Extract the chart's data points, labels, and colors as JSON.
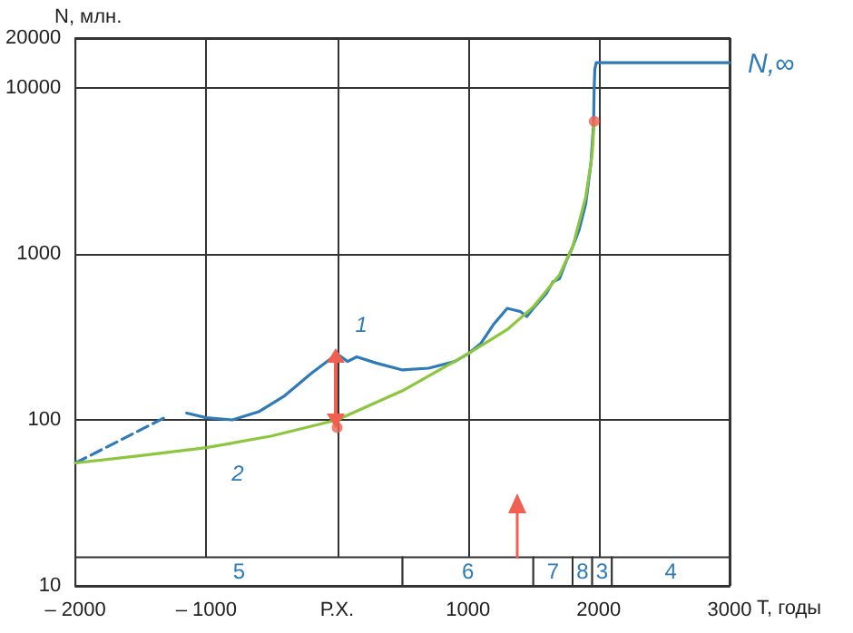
{
  "chart_data": {
    "type": "line",
    "xlabel": "T, годы",
    "ylabel": "N, млн.",
    "log": "y",
    "grid": true,
    "line_style": "solid",
    "marker": "none",
    "xlim": [
      -2000,
      3000
    ],
    "xticks": [
      {
        "value": -2000,
        "label": "– 2000"
      },
      {
        "value": -1000,
        "label": "– 1000"
      },
      {
        "value": 0,
        "label": "Р.Х."
      },
      1000,
      2000,
      3000
    ],
    "ylim": [
      10,
      20000
    ],
    "yticks": [
      10,
      100,
      1000,
      10000,
      20000
    ],
    "series": [
      {
        "name": "1",
        "color": "#2f7ab8",
        "x": [
          -1150,
          -1000,
          -800,
          -600,
          -400,
          -200,
          0,
          80,
          150,
          300,
          500,
          700,
          900,
          1000,
          1100,
          1200,
          1300,
          1400,
          1450,
          1500,
          1600,
          1650,
          1700,
          1750,
          1800,
          1850,
          1900,
          1940,
          1960,
          1965,
          1970,
          1980,
          2100,
          3000
        ],
        "values": [
          110,
          103,
          100,
          112,
          140,
          190,
          250,
          225,
          240,
          220,
          200,
          205,
          225,
          250,
          290,
          380,
          470,
          450,
          420,
          470,
          580,
          680,
          710,
          900,
          1100,
          1400,
          2000,
          3500,
          6000,
          10000,
          13000,
          14200,
          14200,
          14200
        ]
      },
      {
        "color": "#2f7ab8",
        "line_style": "dashed",
        "x": [
          -2000,
          -1300
        ],
        "values": [
          55,
          105
        ]
      },
      {
        "name": "2",
        "color": "#8cc63f",
        "x": [
          -2000,
          -1500,
          -1000,
          -500,
          0,
          500,
          1000,
          1300,
          1500,
          1700,
          1800,
          1900,
          1950,
          1965
        ],
        "values": [
          55,
          61,
          68,
          80,
          100,
          150,
          250,
          350,
          480,
          750,
          1100,
          2200,
          4000,
          6300
        ]
      },
      {
        "type": "scatter",
        "color": "#f06050",
        "marker": "circle",
        "x": [
          0,
          1965
        ],
        "values": [
          90,
          6300
        ]
      }
    ],
    "bands": [
      {
        "axis": "x",
        "from": -2000,
        "to": 500,
        "label": "5"
      },
      {
        "axis": "x",
        "from": 500,
        "to": 1500,
        "label": "6"
      },
      {
        "axis": "x",
        "from": 1500,
        "to": 1800,
        "label": "7"
      },
      {
        "axis": "x",
        "from": 1800,
        "to": 1950,
        "label": "8"
      },
      {
        "axis": "x",
        "from": 1950,
        "to": 2100,
        "label": "3"
      },
      {
        "axis": "x",
        "from": 2100,
        "to": 3000,
        "label": "4"
      }
    ],
    "annotations": [
      "N,∞"
    ]
  }
}
